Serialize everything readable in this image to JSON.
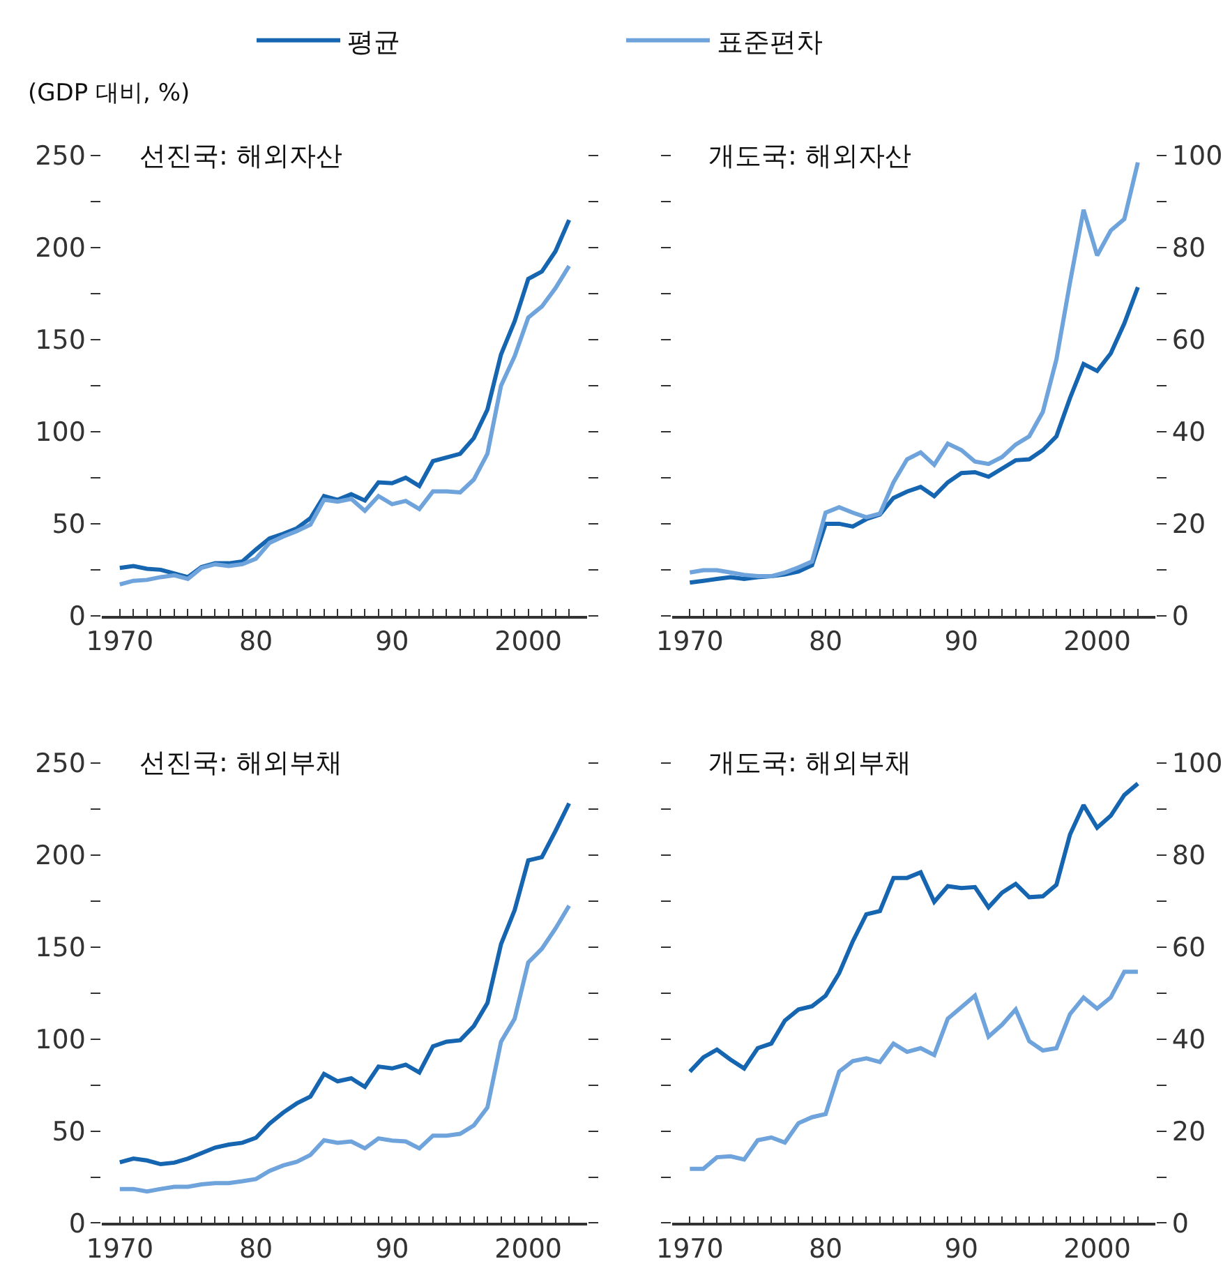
{
  "chart_data": [
    {
      "type": "line",
      "title": "선진국: 해외자산",
      "ylabel": "(GDP 대비, %)",
      "legend": "top",
      "x": [
        1970,
        1971,
        1972,
        1973,
        1974,
        1975,
        1976,
        1977,
        1978,
        1979,
        1980,
        1981,
        1982,
        1983,
        1984,
        1985,
        1986,
        1987,
        1988,
        1989,
        1990,
        1991,
        1992,
        1993,
        1994,
        1995,
        1996,
        1997,
        1998,
        1999,
        2000,
        2001,
        2002,
        2003
      ],
      "series": [
        {
          "name": "평균",
          "color": "#1565b0",
          "values": [
            26,
            27,
            25.5,
            25,
            23,
            21,
            26.5,
            28.5,
            28.5,
            29.5,
            36,
            42,
            44.5,
            47.5,
            53,
            65,
            63,
            66,
            62.6,
            72.5,
            72,
            75,
            70.5,
            84,
            86,
            88,
            96.5,
            112,
            142,
            160,
            183,
            187,
            198,
            215
          ]
        },
        {
          "name": "표준편차",
          "color": "#6fa3dc",
          "values": [
            17,
            19,
            19.5,
            21,
            22,
            20,
            26,
            28,
            27,
            28,
            31,
            39.6,
            43,
            46,
            49.5,
            63,
            62,
            63.5,
            57,
            65,
            60.6,
            62.4,
            58,
            67.6,
            67.6,
            67,
            74,
            88,
            125,
            141,
            162,
            168,
            178,
            190
          ]
        }
      ],
      "xlim": [
        1968.7,
        2004.3
      ],
      "ylim": [
        0,
        250
      ],
      "xticks": [
        1970,
        {
          "value": 1971,
          "label": null
        },
        {
          "value": 1972,
          "label": null
        },
        {
          "value": 1973,
          "label": null
        },
        {
          "value": 1974,
          "label": null
        },
        {
          "value": 1975,
          "label": null
        },
        {
          "value": 1976,
          "label": null
        },
        {
          "value": 1977,
          "label": null
        },
        {
          "value": 1978,
          "label": null
        },
        {
          "value": 1979,
          "label": null
        },
        {
          "value": 1980,
          "label": "80"
        },
        {
          "value": 1981,
          "label": null
        },
        {
          "value": 1982,
          "label": null
        },
        {
          "value": 1983,
          "label": null
        },
        {
          "value": 1984,
          "label": null
        },
        {
          "value": 1985,
          "label": null
        },
        {
          "value": 1986,
          "label": null
        },
        {
          "value": 1987,
          "label": null
        },
        {
          "value": 1988,
          "label": null
        },
        {
          "value": 1989,
          "label": null
        },
        {
          "value": 1990,
          "label": "90"
        },
        {
          "value": 1991,
          "label": null
        },
        {
          "value": 1992,
          "label": null
        },
        {
          "value": 1993,
          "label": null
        },
        {
          "value": 1994,
          "label": null
        },
        {
          "value": 1995,
          "label": null
        },
        {
          "value": 1996,
          "label": null
        },
        {
          "value": 1997,
          "label": null
        },
        {
          "value": 1998,
          "label": null
        },
        {
          "value": 1999,
          "label": null
        },
        2000,
        {
          "value": 2001,
          "label": null
        },
        {
          "value": 2002,
          "label": null
        },
        {
          "value": 2003,
          "label": null
        }
      ],
      "yticks": [
        0,
        {
          "value": 25,
          "label": null
        },
        50,
        {
          "value": 75,
          "label": null
        },
        100,
        {
          "value": 125,
          "label": null
        },
        150,
        {
          "value": 175,
          "label": null
        },
        200,
        {
          "value": 225,
          "label": null
        },
        250
      ],
      "grid": false,
      "marker": "none",
      "line_style": "solid"
    },
    {
      "type": "line",
      "title": "개도국: 해외자산",
      "x": [
        1970,
        1971,
        1972,
        1973,
        1974,
        1975,
        1976,
        1977,
        1978,
        1979,
        1980,
        1981,
        1982,
        1983,
        1984,
        1985,
        1986,
        1987,
        1988,
        1989,
        1990,
        1991,
        1992,
        1993,
        1994,
        1995,
        1996,
        1997,
        1998,
        1999,
        2000,
        2001,
        2002,
        2003
      ],
      "series": [
        {
          "color": "#1565b0",
          "axis": "y2",
          "values": [
            7.2,
            7.6,
            8,
            8.4,
            8,
            8.4,
            8.6,
            9,
            9.6,
            11,
            20,
            20,
            19.4,
            21,
            22,
            25.6,
            27,
            28,
            26,
            29,
            31,
            31.2,
            30.2,
            32,
            33.8,
            34,
            36,
            39,
            47.3,
            54.7,
            53.2,
            57,
            63.5,
            71.4
          ]
        },
        {
          "color": "#6fa3dc",
          "axis": "y2",
          "values": [
            9.4,
            9.9,
            9.9,
            9.4,
            8.9,
            8.6,
            8.6,
            9.4,
            10.5,
            11.8,
            22.4,
            23.6,
            22.4,
            21.4,
            22.2,
            29,
            34,
            35.5,
            32.8,
            37.4,
            36,
            33.5,
            33,
            34.5,
            37.2,
            39,
            44.3,
            55.7,
            72.4,
            88.2,
            78.3,
            83.7,
            86.2,
            98.5
          ]
        }
      ],
      "xlim": [
        1968.7,
        2004.3
      ],
      "y2lim": [
        0,
        100
      ],
      "xticks": [
        1970,
        {
          "value": 1971,
          "label": null
        },
        {
          "value": 1972,
          "label": null
        },
        {
          "value": 1973,
          "label": null
        },
        {
          "value": 1974,
          "label": null
        },
        {
          "value": 1975,
          "label": null
        },
        {
          "value": 1976,
          "label": null
        },
        {
          "value": 1977,
          "label": null
        },
        {
          "value": 1978,
          "label": null
        },
        {
          "value": 1979,
          "label": null
        },
        {
          "value": 1980,
          "label": "80"
        },
        {
          "value": 1981,
          "label": null
        },
        {
          "value": 1982,
          "label": null
        },
        {
          "value": 1983,
          "label": null
        },
        {
          "value": 1984,
          "label": null
        },
        {
          "value": 1985,
          "label": null
        },
        {
          "value": 1986,
          "label": null
        },
        {
          "value": 1987,
          "label": null
        },
        {
          "value": 1988,
          "label": null
        },
        {
          "value": 1989,
          "label": null
        },
        {
          "value": 1990,
          "label": "90"
        },
        {
          "value": 1991,
          "label": null
        },
        {
          "value": 1992,
          "label": null
        },
        {
          "value": 1993,
          "label": null
        },
        {
          "value": 1994,
          "label": null
        },
        {
          "value": 1995,
          "label": null
        },
        {
          "value": 1996,
          "label": null
        },
        {
          "value": 1997,
          "label": null
        },
        {
          "value": 1998,
          "label": null
        },
        {
          "value": 1999,
          "label": null
        },
        2000,
        {
          "value": 2001,
          "label": null
        },
        {
          "value": 2002,
          "label": null
        },
        {
          "value": 2003,
          "label": null
        }
      ],
      "y2ticks": [
        0,
        {
          "value": 10,
          "label": null
        },
        20,
        {
          "value": 30,
          "label": null
        },
        40,
        {
          "value": 50,
          "label": null
        },
        60,
        {
          "value": 70,
          "label": null
        },
        80,
        {
          "value": 90,
          "label": null
        },
        100
      ],
      "grid": false,
      "legend": false,
      "marker": "none",
      "line_style": "solid"
    },
    {
      "type": "line",
      "title": "선진국: 해외부채",
      "x": [
        1970,
        1971,
        1972,
        1973,
        1974,
        1975,
        1976,
        1977,
        1978,
        1979,
        1980,
        1981,
        1982,
        1983,
        1984,
        1985,
        1986,
        1987,
        1988,
        1989,
        1990,
        1991,
        1992,
        1993,
        1994,
        1995,
        1996,
        1997,
        1998,
        1999,
        2000,
        2001,
        2002,
        2003
      ],
      "series": [
        {
          "color": "#1565b0",
          "values": [
            33,
            35,
            34,
            32,
            32.8,
            35,
            38,
            41,
            42.6,
            43.6,
            46.3,
            54,
            60,
            65,
            68.7,
            81,
            77,
            78.6,
            74,
            85,
            84,
            86,
            81.8,
            96,
            98.5,
            99.3,
            107,
            119.5,
            151.5,
            170,
            197,
            198.8,
            213,
            228
          ]
        },
        {
          "color": "#6fa3dc",
          "values": [
            18.5,
            18.5,
            17.2,
            18.5,
            19.7,
            19.7,
            21,
            21.7,
            21.7,
            22.7,
            23.9,
            28.3,
            31.3,
            33.3,
            37,
            45,
            43.6,
            44.3,
            40.6,
            46,
            44.8,
            44.3,
            40.6,
            47.5,
            47.5,
            48.5,
            53,
            62.8,
            98.5,
            111,
            141.6,
            149,
            160,
            172.4
          ]
        }
      ],
      "xlim": [
        1968.7,
        2004.3
      ],
      "ylim": [
        0,
        250
      ],
      "xticks": [
        1970,
        {
          "value": 1971,
          "label": null
        },
        {
          "value": 1972,
          "label": null
        },
        {
          "value": 1973,
          "label": null
        },
        {
          "value": 1974,
          "label": null
        },
        {
          "value": 1975,
          "label": null
        },
        {
          "value": 1976,
          "label": null
        },
        {
          "value": 1977,
          "label": null
        },
        {
          "value": 1978,
          "label": null
        },
        {
          "value": 1979,
          "label": null
        },
        {
          "value": 1980,
          "label": "80"
        },
        {
          "value": 1981,
          "label": null
        },
        {
          "value": 1982,
          "label": null
        },
        {
          "value": 1983,
          "label": null
        },
        {
          "value": 1984,
          "label": null
        },
        {
          "value": 1985,
          "label": null
        },
        {
          "value": 1986,
          "label": null
        },
        {
          "value": 1987,
          "label": null
        },
        {
          "value": 1988,
          "label": null
        },
        {
          "value": 1989,
          "label": null
        },
        {
          "value": 1990,
          "label": "90"
        },
        {
          "value": 1991,
          "label": null
        },
        {
          "value": 1992,
          "label": null
        },
        {
          "value": 1993,
          "label": null
        },
        {
          "value": 1994,
          "label": null
        },
        {
          "value": 1995,
          "label": null
        },
        {
          "value": 1996,
          "label": null
        },
        {
          "value": 1997,
          "label": null
        },
        {
          "value": 1998,
          "label": null
        },
        {
          "value": 1999,
          "label": null
        },
        2000,
        {
          "value": 2001,
          "label": null
        },
        {
          "value": 2002,
          "label": null
        },
        {
          "value": 2003,
          "label": null
        }
      ],
      "yticks": [
        0,
        {
          "value": 25,
          "label": null
        },
        50,
        {
          "value": 75,
          "label": null
        },
        100,
        {
          "value": 125,
          "label": null
        },
        150,
        {
          "value": 175,
          "label": null
        },
        200,
        {
          "value": 225,
          "label": null
        },
        250
      ],
      "grid": false,
      "legend": false,
      "marker": "none",
      "line_style": "solid"
    },
    {
      "type": "line",
      "title": "개도국: 해외부채",
      "x": [
        1970,
        1971,
        1972,
        1973,
        1974,
        1975,
        1976,
        1977,
        1978,
        1979,
        1980,
        1981,
        1982,
        1983,
        1984,
        1985,
        1986,
        1987,
        1988,
        1989,
        1990,
        1991,
        1992,
        1993,
        1994,
        1995,
        1996,
        1997,
        1998,
        1999,
        2000,
        2001,
        2002,
        2003
      ],
      "series": [
        {
          "color": "#1565b0",
          "axis": "y2",
          "values": [
            32.9,
            36,
            37.7,
            35.5,
            33.6,
            38,
            39,
            44,
            46.4,
            47.1,
            49.4,
            54.3,
            61.2,
            67.1,
            67.8,
            75,
            75,
            76.2,
            69.8,
            73.2,
            72.8,
            73,
            68.6,
            71.8,
            73.7,
            70.8,
            71,
            73.5,
            84.4,
            90.8,
            85.9,
            88.5,
            93,
            95.5
          ]
        },
        {
          "color": "#6fa3dc",
          "axis": "y2",
          "values": [
            11.8,
            11.8,
            14.3,
            14.5,
            13.8,
            18,
            18.6,
            17.5,
            21.7,
            23,
            23.7,
            32.9,
            35.2,
            35.8,
            35,
            39,
            37.2,
            38,
            36.5,
            44.4,
            46.9,
            49.4,
            40.5,
            43.1,
            46.4,
            39.5,
            37.5,
            38,
            45.4,
            49,
            46.6,
            49,
            54.6,
            54.6
          ]
        }
      ],
      "xlim": [
        1968.7,
        2004.3
      ],
      "y2lim": [
        0,
        100
      ],
      "xticks": [
        1970,
        {
          "value": 1971,
          "label": null
        },
        {
          "value": 1972,
          "label": null
        },
        {
          "value": 1973,
          "label": null
        },
        {
          "value": 1974,
          "label": null
        },
        {
          "value": 1975,
          "label": null
        },
        {
          "value": 1976,
          "label": null
        },
        {
          "value": 1977,
          "label": null
        },
        {
          "value": 1978,
          "label": null
        },
        {
          "value": 1979,
          "label": null
        },
        {
          "value": 1980,
          "label": "80"
        },
        {
          "value": 1981,
          "label": null
        },
        {
          "value": 1982,
          "label": null
        },
        {
          "value": 1983,
          "label": null
        },
        {
          "value": 1984,
          "label": null
        },
        {
          "value": 1985,
          "label": null
        },
        {
          "value": 1986,
          "label": null
        },
        {
          "value": 1987,
          "label": null
        },
        {
          "value": 1988,
          "label": null
        },
        {
          "value": 1989,
          "label": null
        },
        {
          "value": 1990,
          "label": "90"
        },
        {
          "value": 1991,
          "label": null
        },
        {
          "value": 1992,
          "label": null
        },
        {
          "value": 1993,
          "label": null
        },
        {
          "value": 1994,
          "label": null
        },
        {
          "value": 1995,
          "label": null
        },
        {
          "value": 1996,
          "label": null
        },
        {
          "value": 1997,
          "label": null
        },
        {
          "value": 1998,
          "label": null
        },
        {
          "value": 1999,
          "label": null
        },
        2000,
        {
          "value": 2001,
          "label": null
        },
        {
          "value": 2002,
          "label": null
        },
        {
          "value": 2003,
          "label": null
        }
      ],
      "y2ticks": [
        0,
        {
          "value": 10,
          "label": null
        },
        20,
        {
          "value": 30,
          "label": null
        },
        40,
        {
          "value": 50,
          "label": null
        },
        60,
        {
          "value": 70,
          "label": null
        },
        80,
        {
          "value": 90,
          "label": null
        },
        100
      ],
      "grid": false,
      "legend": false,
      "marker": "none",
      "line_style": "solid"
    }
  ]
}
